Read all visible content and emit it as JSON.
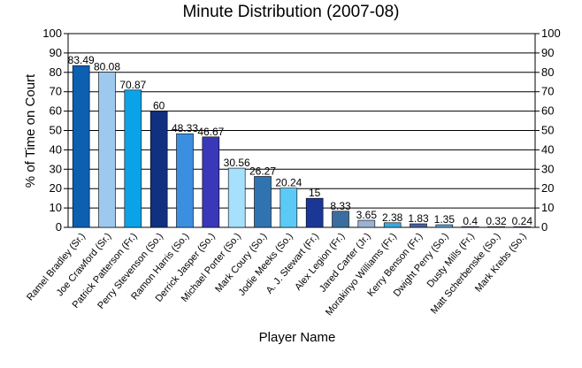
{
  "chart_data": {
    "type": "bar",
    "title": "Minute Distribution (2007-08)",
    "xlabel": "Player Name",
    "ylabel": "% of Time on Court",
    "ylim": [
      0,
      100
    ],
    "yticks": [
      0,
      10,
      20,
      30,
      40,
      50,
      60,
      70,
      80,
      90,
      100
    ],
    "grid": true,
    "categories": [
      "Ramel Bradley (Sr.)",
      "Joe Crawford (Sr.)",
      "Patrick Patterson (Fr.)",
      "Perry Stevenson (So.)",
      "Ramon Harris (So.)",
      "Derrick Jasper (So.)",
      "Michael Porter (So.)",
      "Mark Coury (So.)",
      "Jodie Meeks (So.)",
      "A. J. Stewart (Fr.)",
      "Alex Legion (Fr.)",
      "Jared Carter (Jr.)",
      "Morakinyo Williams (Fr.)",
      "Kerry Benson (Fr.)",
      "Dwight Perry (So.)",
      "Dusty Mills (Fr.)",
      "Matt Scherbenske (So.)",
      "Mark Krebs (So.)"
    ],
    "values": [
      83.49,
      80.08,
      70.87,
      60,
      48.33,
      46.67,
      30.56,
      26.27,
      20.24,
      15,
      8.33,
      3.65,
      2.38,
      1.83,
      1.35,
      0.4,
      0.32,
      0.24
    ],
    "value_labels": [
      "83.49",
      "80.08",
      "70.87",
      "60",
      "48.33",
      "46.67",
      "30.56",
      "26.27",
      "20.24",
      "15",
      "8.33",
      "3.65",
      "2.38",
      "1.83",
      "1.35",
      "0.4",
      "0.32",
      "0.24"
    ],
    "colors": [
      "#0d5fb0",
      "#9ec9ee",
      "#0ba3e8",
      "#10307f",
      "#3c8fe0",
      "#3838b8",
      "#a6e0fb",
      "#2f74b0",
      "#5ccaf7",
      "#1b3795",
      "#3a6ea0",
      "#9ab2d3",
      "#3aa9de",
      "#4a5fa0",
      "#5ea3cf",
      "#7a93c6",
      "#8aa5d6",
      "#6f9bd1"
    ]
  }
}
